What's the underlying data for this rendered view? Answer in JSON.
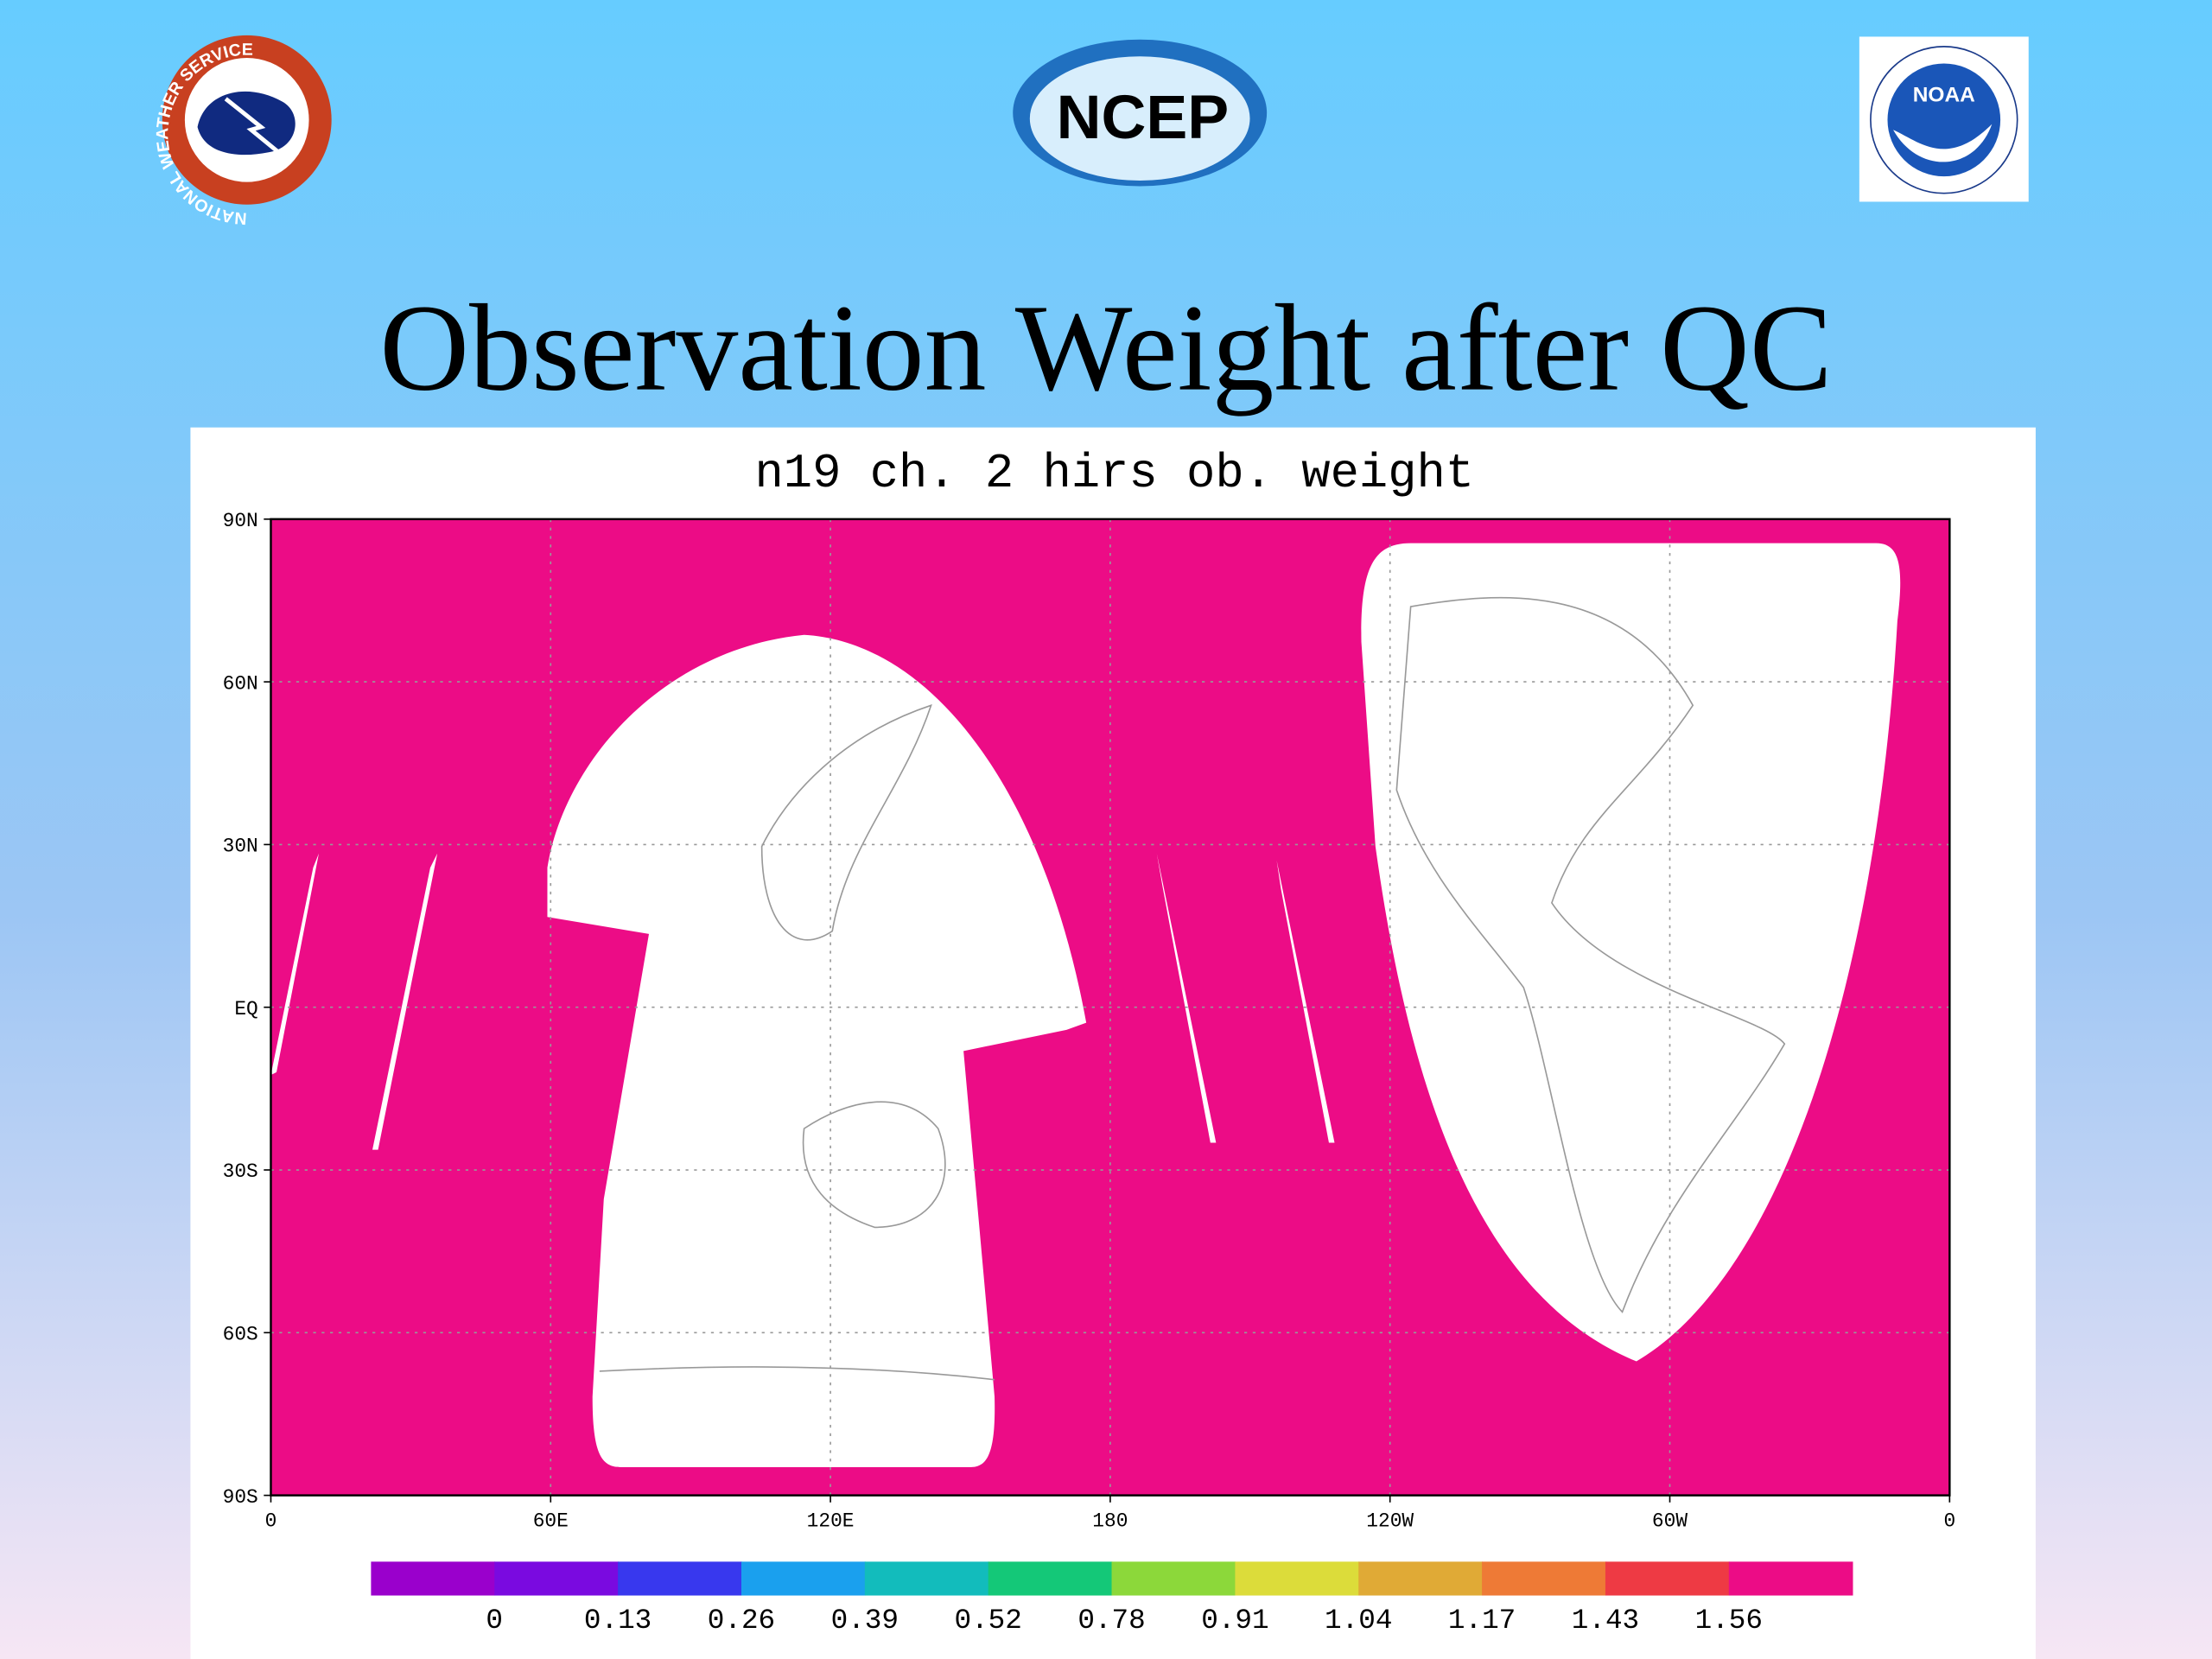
{
  "header": {
    "logos": [
      "NATIONAL WEATHER SERVICE",
      "NCEP",
      "NOAA"
    ]
  },
  "title": "Observation Weight after QC",
  "chart_data": {
    "type": "map",
    "title": "n19 ch. 2 hirs ob. weight",
    "xlim": [
      0,
      360
    ],
    "xticks": [
      0,
      {
        "value": 60,
        "label": "60E"
      },
      {
        "value": 120,
        "label": "120E"
      },
      180,
      {
        "value": 240,
        "label": "120W"
      },
      {
        "value": 300,
        "label": "60W"
      },
      {
        "value": 360,
        "label": "0"
      }
    ],
    "ylim": [
      -90,
      90
    ],
    "yticks": [
      {
        "value": -90,
        "label": "90S"
      },
      {
        "value": -60,
        "label": "60S"
      },
      {
        "value": -30,
        "label": "30S"
      },
      {
        "value": 0,
        "label": "EQ"
      },
      {
        "value": 30,
        "label": "30N"
      },
      {
        "value": 60,
        "label": "60N"
      },
      {
        "value": 90,
        "label": "90N"
      }
    ],
    "grid": true,
    "colorbar": {
      "levels": [
        0,
        0.13,
        0.26,
        0.39,
        0.52,
        0.78,
        0.91,
        1.04,
        1.17,
        1.43,
        1.56
      ],
      "colors": [
        "#9a00cc",
        "#7a0ae0",
        "#3838ee",
        "#1aa0ee",
        "#12bcbc",
        "#14c878",
        "#8cd83a",
        "#dcdc3a",
        "#e0aa36",
        "#ee7a36",
        "#ee3a44",
        "#ec0c86"
      ]
    }
  }
}
